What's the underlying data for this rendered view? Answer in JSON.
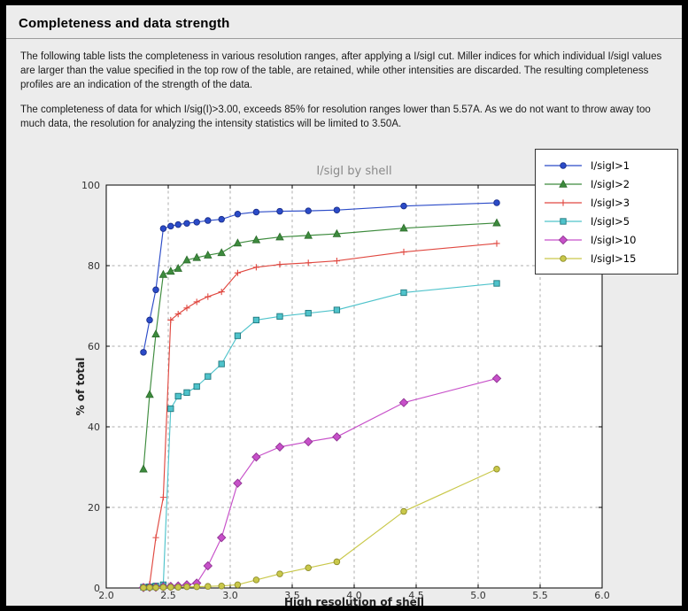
{
  "header": {
    "title": "Completeness and data strength"
  },
  "paragraphs": {
    "p1": "The following table lists the completeness in various resolution ranges, after applying a I/sigI cut. Miller indices for which individual I/sigI values are larger than the value specified in the top row of the table, are retained, while other intensities are discarded. The resulting completeness profiles are an indication of the strength of the data.",
    "p2": "The completeness of data for which I/sig(I)>3.00, exceeds 85% for resolution ranges lower than 5.57A. As we do not want to throw away too much data, the resolution for analyzing the intensity statistics will be limited to 3.50A."
  },
  "chart_data": {
    "type": "line",
    "title": "I/sigI by shell",
    "xlabel": "High resolution of shell",
    "ylabel": "% of total",
    "xlim": [
      2.0,
      6.0
    ],
    "ylim": [
      0,
      100
    ],
    "xticks": [
      2.0,
      2.5,
      3.0,
      3.5,
      4.0,
      4.5,
      5.0,
      5.5,
      6.0
    ],
    "yticks": [
      0,
      20,
      40,
      60,
      80,
      100
    ],
    "grid": true,
    "legend_position": "top-right",
    "x": [
      2.3,
      2.35,
      2.4,
      2.46,
      2.52,
      2.58,
      2.65,
      2.73,
      2.82,
      2.93,
      3.06,
      3.21,
      3.4,
      3.63,
      3.86,
      4.4,
      5.15
    ],
    "series": [
      {
        "name": "I/sigI>1",
        "marker": "circle",
        "color": "#2b4bc8",
        "edge": "#1b2f8a",
        "values": [
          58.5,
          66.5,
          74.0,
          89.2,
          89.8,
          90.2,
          90.5,
          90.8,
          91.2,
          91.5,
          92.8,
          93.3,
          93.5,
          93.6,
          93.8,
          94.8,
          95.6
        ]
      },
      {
        "name": "I/sigI>2",
        "marker": "triangle",
        "color": "#3d8b3d",
        "edge": "#2c6b2c",
        "values": [
          29.5,
          48.0,
          63.0,
          77.8,
          78.6,
          79.3,
          81.4,
          82.0,
          82.6,
          83.2,
          85.6,
          86.4,
          87.1,
          87.5,
          87.9,
          89.3,
          90.6
        ]
      },
      {
        "name": "I/sigI>3",
        "marker": "plus",
        "color": "#e04840",
        "edge": "#a32e28",
        "values": [
          0.4,
          0.9,
          12.5,
          22.5,
          66.5,
          68.0,
          69.5,
          71.0,
          72.3,
          73.5,
          78.2,
          79.6,
          80.3,
          80.7,
          81.2,
          83.4,
          85.5
        ]
      },
      {
        "name": "I/sigI>5",
        "marker": "square",
        "color": "#4fc3cb",
        "edge": "#1f777d",
        "values": [
          0.2,
          0.3,
          0.5,
          0.8,
          44.5,
          47.6,
          48.5,
          50.0,
          52.5,
          55.6,
          62.6,
          66.5,
          67.4,
          68.2,
          69.0,
          73.3,
          75.6
        ]
      },
      {
        "name": "I/sigI>10",
        "marker": "diamond",
        "color": "#c750c9",
        "edge": "#8f3492",
        "values": [
          0.1,
          0.2,
          0.2,
          0.3,
          0.4,
          0.5,
          0.8,
          1.2,
          5.5,
          12.5,
          26.0,
          32.5,
          35.0,
          36.3,
          37.5,
          46.0,
          52.0
        ]
      },
      {
        "name": "I/sigI>15",
        "marker": "circle",
        "color": "#c9c84a",
        "edge": "#8e8d2a",
        "values": [
          0.05,
          0.1,
          0.1,
          0.15,
          0.2,
          0.2,
          0.3,
          0.3,
          0.4,
          0.5,
          0.8,
          2.0,
          3.5,
          5.0,
          6.5,
          19.0,
          29.5
        ]
      }
    ]
  }
}
